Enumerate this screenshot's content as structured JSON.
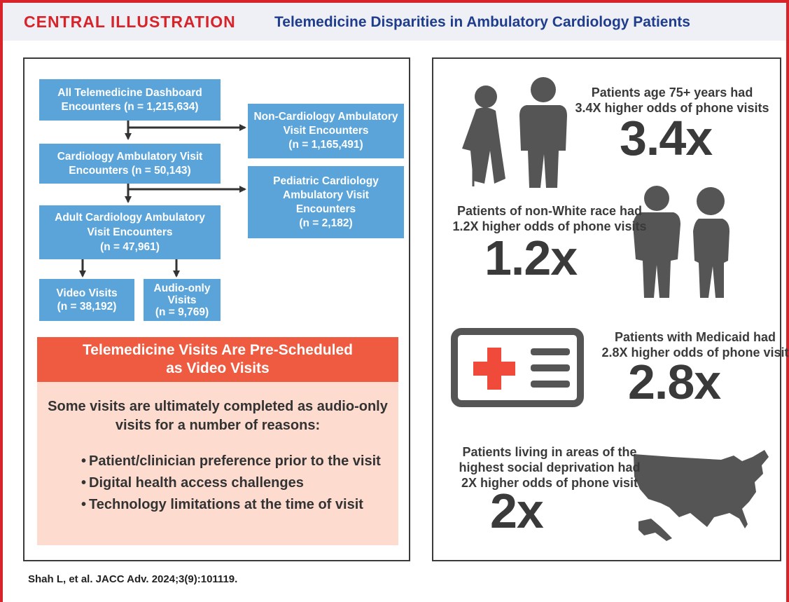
{
  "header": {
    "label": "CENTRAL ILLUSTRATION",
    "title": "Telemedicine Disparities in Ambulatory Cardiology Patients"
  },
  "flowchart": {
    "nodes": [
      {
        "lines": [
          "All Telemedicine Dashboard",
          "Encounters (n = 1,215,634)"
        ]
      },
      {
        "lines": [
          "Non-Cardiology Ambulatory",
          "Visit Encounters",
          "(n = 1,165,491)"
        ]
      },
      {
        "lines": [
          "Cardiology Ambulatory Visit",
          "Encounters (n = 50,143)"
        ]
      },
      {
        "lines": [
          "Pediatric Cardiology",
          "Ambulatory Visit",
          "Encounters",
          "(n = 2,182)"
        ]
      },
      {
        "lines": [
          "Adult Cardiology Ambulatory",
          "Visit Encounters",
          "(n = 47,961)"
        ]
      },
      {
        "lines": [
          "Video Visits",
          "(n = 38,192)"
        ]
      },
      {
        "lines": [
          "Audio-only",
          "Visits",
          "(n = 9,769)"
        ]
      }
    ]
  },
  "callout": {
    "title": [
      "Telemedicine Visits Are Pre-Scheduled",
      "as Video Visits"
    ],
    "intro": [
      "Some visits are ultimately completed as audio-only",
      "visits for a number of reasons:"
    ],
    "reasons": [
      "Patient/clinician preference prior to the visit",
      "Digital health access challenges",
      "Technology limitations at the time of visit"
    ]
  },
  "findings": [
    {
      "lines": [
        "Patients age 75+ years had",
        "3.4X higher odds of phone visits"
      ],
      "value": "3.4x"
    },
    {
      "lines": [
        "Patients of non-White race had",
        "1.2X higher odds of phone visits"
      ],
      "value": "1.2x"
    },
    {
      "lines": [
        "Patients with Medicaid had",
        "2.8X higher odds of phone visit"
      ],
      "value": "2.8x"
    },
    {
      "lines": [
        "Patients living in areas of the",
        "highest social deprivation had",
        "2X higher odds of phone visit"
      ],
      "value": "2x"
    }
  ],
  "citation": "Shah L, et al. JACC Adv. 2024;3(9):101119."
}
